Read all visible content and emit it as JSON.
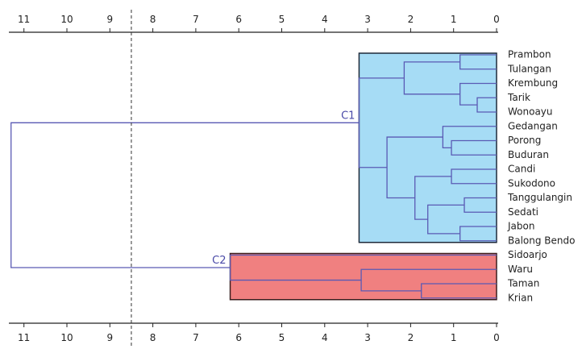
{
  "chart_data": {
    "type": "dendrogram",
    "axis_ticks": [
      11,
      10,
      9,
      8,
      7,
      6,
      5,
      4,
      3,
      2,
      1,
      0
    ],
    "xlim": [
      11.3,
      0
    ],
    "cut_height": 8.5,
    "leaves": [
      "Prambon",
      "Tulangan",
      "Krembung",
      "Tarik",
      "Wonoayu",
      "Gedangan",
      "Porong",
      "Buduran",
      "Candi",
      "Sukodono",
      "Tanggulangin",
      "Sedati",
      "Jabon",
      "Balong Bendo",
      "Sidoarjo",
      "Waru",
      "Taman",
      "Krian"
    ],
    "merges": [
      {
        "a": "L0",
        "b": "L1",
        "h": 0.85
      },
      {
        "a": "L3",
        "b": "L4",
        "h": 0.45
      },
      {
        "a": "L2",
        "b": "M1",
        "h": 0.85
      },
      {
        "a": "M0",
        "b": "M2",
        "h": 2.15
      },
      {
        "a": "L6",
        "b": "L7",
        "h": 1.05
      },
      {
        "a": "L5",
        "b": "M4",
        "h": 1.25
      },
      {
        "a": "L8",
        "b": "L9",
        "h": 1.05
      },
      {
        "a": "L10",
        "b": "L11",
        "h": 0.75
      },
      {
        "a": "L12",
        "b": "L13",
        "h": 0.85
      },
      {
        "a": "M7",
        "b": "M8",
        "h": 1.6
      },
      {
        "a": "M6",
        "b": "M9",
        "h": 1.9
      },
      {
        "a": "M5",
        "b": "M10",
        "h": 2.55
      },
      {
        "a": "M3",
        "b": "M11",
        "h": 3.2
      },
      {
        "a": "L16",
        "b": "L17",
        "h": 1.75
      },
      {
        "a": "L15",
        "b": "M13",
        "h": 3.15
      },
      {
        "a": "L14",
        "b": "M14",
        "h": 6.2
      },
      {
        "a": "M12",
        "b": "M15",
        "h": 11.3
      }
    ],
    "clusters": [
      {
        "label": "C1",
        "node": "M12",
        "color": "#a6dcf5",
        "border": "#1e2a3a",
        "label_color": "#4a4aa8"
      },
      {
        "label": "C2",
        "node": "M15",
        "color": "#f08080",
        "border": "#3a1e1e",
        "label_color": "#4a4aa8"
      }
    ]
  }
}
